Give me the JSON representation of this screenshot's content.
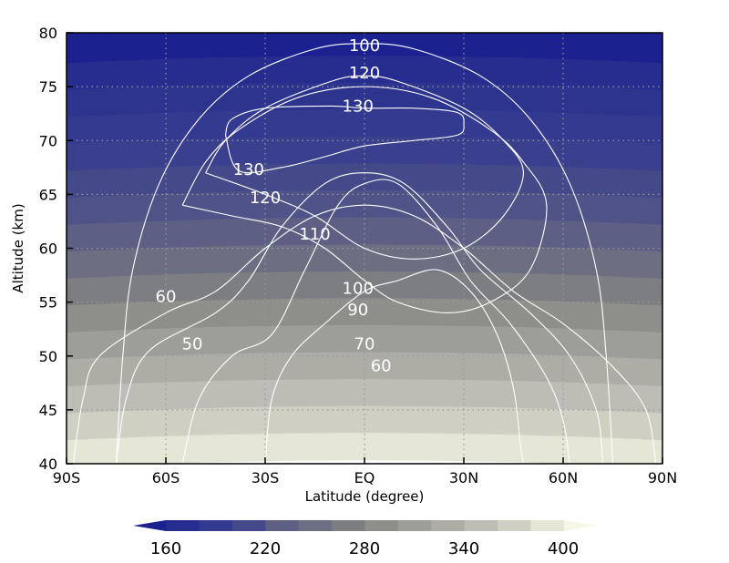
{
  "chart_data": {
    "type": "contour",
    "xlabel": "Latitude (degree)",
    "ylabel": "Altitude (km)",
    "xlim": [
      -90,
      90
    ],
    "ylim": [
      40,
      80
    ],
    "x_ticks": [
      {
        "value": -90,
        "label": "90S"
      },
      {
        "value": -60,
        "label": "60S"
      },
      {
        "value": -30,
        "label": "30S"
      },
      {
        "value": 0,
        "label": "EQ"
      },
      {
        "value": 30,
        "label": "30N"
      },
      {
        "value": 60,
        "label": "60N"
      },
      {
        "value": 90,
        "label": "90N"
      }
    ],
    "y_ticks": [
      {
        "value": 40,
        "label": "40"
      },
      {
        "value": 45,
        "label": "45"
      },
      {
        "value": 50,
        "label": "50"
      },
      {
        "value": 55,
        "label": "55"
      },
      {
        "value": 60,
        "label": "60"
      },
      {
        "value": 65,
        "label": "65"
      },
      {
        "value": 70,
        "label": "70"
      },
      {
        "value": 75,
        "label": "75"
      },
      {
        "value": 80,
        "label": "80"
      }
    ],
    "grid": true,
    "filled_field": {
      "bands": [
        {
          "y0": 77.5,
          "y1": 80,
          "color": "#1b2290"
        },
        {
          "y0": 75,
          "y1": 77.5,
          "color": "#262d8f"
        },
        {
          "y0": 72.5,
          "y1": 75,
          "color": "#2d348e"
        },
        {
          "y0": 70,
          "y1": 72.5,
          "color": "#333a8f"
        },
        {
          "y0": 67.5,
          "y1": 70,
          "color": "#3a408d"
        },
        {
          "y0": 65,
          "y1": 67.5,
          "color": "#44498a"
        },
        {
          "y0": 62.5,
          "y1": 65,
          "color": "#4f5387"
        },
        {
          "y0": 60,
          "y1": 62.5,
          "color": "#5d6084"
        },
        {
          "y0": 57.5,
          "y1": 60,
          "color": "#6c6e82"
        },
        {
          "y0": 55,
          "y1": 57.5,
          "color": "#7d7e82"
        },
        {
          "y0": 52.5,
          "y1": 55,
          "color": "#8e8e8a"
        },
        {
          "y0": 50,
          "y1": 52.5,
          "color": "#9e9e98"
        },
        {
          "y0": 47.5,
          "y1": 50,
          "color": "#adada6"
        },
        {
          "y0": 45,
          "y1": 47.5,
          "color": "#bdbdb5"
        },
        {
          "y0": 42.5,
          "y1": 45,
          "color": "#cfcfc4"
        },
        {
          "y0": 40,
          "y1": 42.5,
          "color": "#e6e6d6"
        }
      ]
    },
    "contours": [
      {
        "level": 50,
        "label": "50",
        "points": [
          [
            -88,
            40
          ],
          [
            -85,
            46
          ],
          [
            -80,
            50
          ],
          [
            -60,
            54
          ],
          [
            -45,
            56
          ],
          [
            -30,
            60
          ],
          [
            -15,
            63
          ],
          [
            0,
            64
          ],
          [
            15,
            63
          ],
          [
            30,
            60
          ],
          [
            45,
            56
          ],
          [
            60,
            53
          ],
          [
            75,
            49
          ],
          [
            85,
            45
          ],
          [
            88,
            40
          ]
        ]
      },
      {
        "level": 60,
        "label": "60",
        "points": [
          [
            -75,
            40
          ],
          [
            -72,
            46
          ],
          [
            -65,
            50.5
          ],
          [
            -45,
            54
          ],
          [
            -35,
            57
          ],
          [
            -25,
            62
          ],
          [
            -12,
            66
          ],
          [
            0,
            67
          ],
          [
            12,
            66
          ],
          [
            25,
            62
          ],
          [
            35,
            58
          ],
          [
            50,
            54
          ],
          [
            62,
            50
          ],
          [
            70,
            45
          ],
          [
            72,
            40
          ]
        ]
      },
      {
        "level": 70,
        "label": "70",
        "points": [
          [
            -55,
            40
          ],
          [
            -50,
            46
          ],
          [
            -40,
            50
          ],
          [
            -28,
            52
          ],
          [
            -18,
            58
          ],
          [
            -8,
            64
          ],
          [
            0,
            66
          ],
          [
            10,
            66
          ],
          [
            22,
            62
          ],
          [
            32,
            57
          ],
          [
            44,
            53
          ],
          [
            55,
            48
          ],
          [
            60,
            44
          ],
          [
            62,
            40
          ]
        ]
      },
      {
        "level": 90,
        "label": "90",
        "points": [
          [
            -30,
            40
          ],
          [
            -28,
            46
          ],
          [
            -22,
            50
          ],
          [
            -12,
            53
          ],
          [
            0,
            56
          ],
          [
            10,
            57
          ],
          [
            22,
            58
          ],
          [
            32,
            56
          ],
          [
            40,
            52
          ],
          [
            45,
            47
          ],
          [
            47,
            42
          ],
          [
            48,
            40
          ]
        ]
      },
      {
        "level": 100,
        "label": "100",
        "points": [
          [
            -75,
            40
          ],
          [
            -73,
            50
          ],
          [
            -70,
            58
          ],
          [
            -62,
            66
          ],
          [
            -50,
            72
          ],
          [
            -35,
            76
          ],
          [
            -15,
            78.5
          ],
          [
            0,
            79
          ],
          [
            15,
            78.5
          ],
          [
            35,
            76
          ],
          [
            50,
            72
          ],
          [
            62,
            66
          ],
          [
            70,
            58
          ],
          [
            73,
            50
          ],
          [
            75,
            40
          ]
        ]
      },
      {
        "level": 110,
        "label": "110",
        "points": [
          [
            -55,
            64
          ],
          [
            -48,
            68
          ],
          [
            -38,
            71
          ],
          [
            -20,
            74
          ],
          [
            0,
            75
          ],
          [
            20,
            74
          ],
          [
            38,
            71
          ],
          [
            48,
            68
          ],
          [
            55,
            64
          ],
          [
            50,
            58
          ],
          [
            38,
            55
          ],
          [
            25,
            54
          ],
          [
            10,
            55
          ],
          [
            0,
            57
          ],
          [
            -12,
            60
          ],
          [
            -25,
            62
          ],
          [
            -40,
            63
          ],
          [
            -55,
            64
          ]
        ]
      },
      {
        "level": 120,
        "label": "120",
        "points": [
          [
            -48,
            67
          ],
          [
            -42,
            70
          ],
          [
            -30,
            73
          ],
          [
            -10,
            75.5
          ],
          [
            0,
            76
          ],
          [
            10,
            75.5
          ],
          [
            30,
            73
          ],
          [
            42,
            70
          ],
          [
            48,
            67
          ],
          [
            42,
            63
          ],
          [
            30,
            60
          ],
          [
            15,
            59
          ],
          [
            0,
            60
          ],
          [
            -15,
            63
          ],
          [
            -30,
            65
          ],
          [
            -48,
            67
          ]
        ]
      },
      {
        "level": 130,
        "label": "130",
        "points": [
          [
            -42,
            70.5
          ],
          [
            -40,
            72
          ],
          [
            -30,
            73
          ],
          [
            -10,
            73.2
          ],
          [
            0,
            73
          ],
          [
            15,
            73
          ],
          [
            28,
            72.6
          ],
          [
            30,
            71.5
          ],
          [
            28,
            70.5
          ],
          [
            15,
            70
          ],
          [
            0,
            69.5
          ],
          [
            -12,
            68.5
          ],
          [
            -25,
            67.5
          ],
          [
            -38,
            67.2
          ],
          [
            -42,
            70.5
          ]
        ]
      }
    ],
    "contour_labels": [
      {
        "text": "100",
        "x": 0,
        "y": 78.8
      },
      {
        "text": "120",
        "x": 0,
        "y": 76.3
      },
      {
        "text": "130",
        "x": -2,
        "y": 73.2
      },
      {
        "text": "130",
        "x": -35,
        "y": 67.3
      },
      {
        "text": "120",
        "x": -30,
        "y": 64.7
      },
      {
        "text": "110",
        "x": -15,
        "y": 61.3
      },
      {
        "text": "100",
        "x": -2,
        "y": 56.3
      },
      {
        "text": "90",
        "x": -2,
        "y": 54.3
      },
      {
        "text": "70",
        "x": 0,
        "y": 51.1
      },
      {
        "text": "60",
        "x": 5,
        "y": 49.1
      },
      {
        "text": "60",
        "x": -60,
        "y": 55.5
      },
      {
        "text": "50",
        "x": -52,
        "y": 51.1
      }
    ],
    "colorbar": {
      "tick_labels": [
        "160",
        "220",
        "280",
        "340",
        "400"
      ],
      "colors": [
        "#1b2290",
        "#262d8f",
        "#333a8f",
        "#44498a",
        "#5d6084",
        "#6c6e82",
        "#7d7e82",
        "#8e8e8a",
        "#9e9e98",
        "#adada6",
        "#bdbdb5",
        "#cfcfc4",
        "#e6e6d6",
        "#f7f7e6"
      ],
      "extend": "both"
    }
  }
}
